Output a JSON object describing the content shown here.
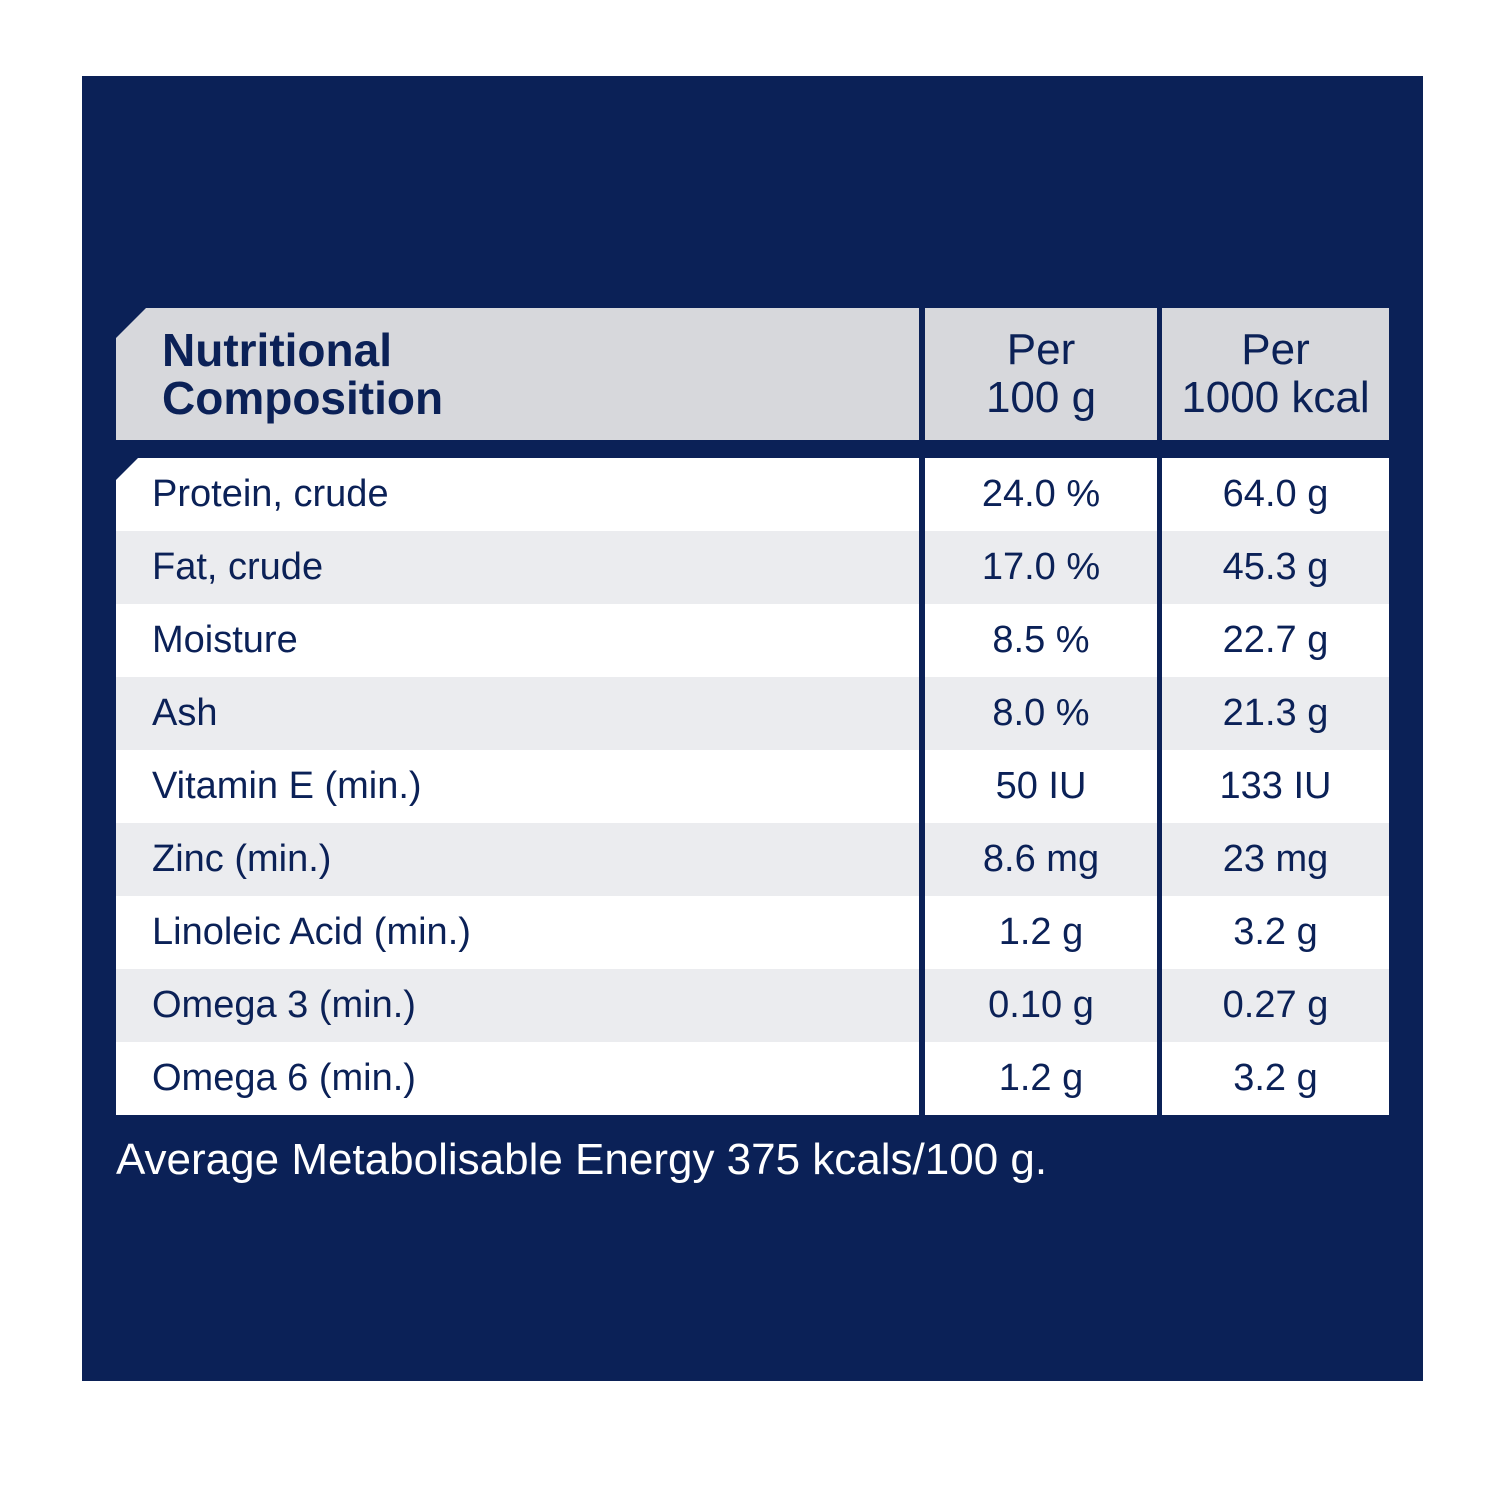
{
  "table": {
    "header": {
      "name_line1": "Nutritional",
      "name_line2": "Composition",
      "col1_line1": "Per",
      "col1_line2": "100 g",
      "col2_line1": "Per",
      "col2_line2": "1000 kcal"
    },
    "rows": [
      {
        "name": "Protein, crude",
        "per100g": "24.0 %",
        "per1000kcal": "64.0 g"
      },
      {
        "name": "Fat, crude",
        "per100g": "17.0 %",
        "per1000kcal": "45.3 g"
      },
      {
        "name": "Moisture",
        "per100g": "8.5 %",
        "per1000kcal": "22.7 g"
      },
      {
        "name": "Ash",
        "per100g": "8.0 %",
        "per1000kcal": "21.3 g"
      },
      {
        "name": "Vitamin E (min.)",
        "per100g": "50 IU",
        "per1000kcal": "133 IU"
      },
      {
        "name": "Zinc (min.)",
        "per100g": "8.6 mg",
        "per1000kcal": "23 mg"
      },
      {
        "name": "Linoleic Acid (min.)",
        "per100g": "1.2 g",
        "per1000kcal": "3.2 g"
      },
      {
        "name": "Omega 3 (min.)",
        "per100g": "0.10 g",
        "per1000kcal": "0.27 g"
      },
      {
        "name": "Omega 6 (min.)",
        "per100g": "1.2 g",
        "per1000kcal": "3.2 g"
      }
    ]
  },
  "footnote": "Average Metabolisable Energy 375 kcals/100 g.",
  "colors": {
    "background": "#0b2157",
    "header": "#d7d8dc",
    "row_odd": "#ffffff",
    "row_even": "#ebecef",
    "text": "#0b2157"
  }
}
